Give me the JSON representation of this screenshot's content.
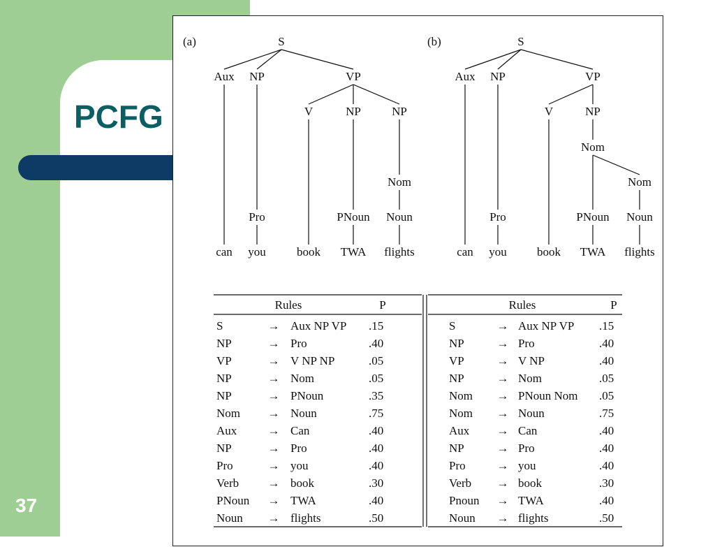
{
  "slide": {
    "title": "PCFG",
    "page_number": "37"
  },
  "trees": [
    {
      "label": "(a)",
      "nodes": [
        {
          "id": "S",
          "text": "S"
        },
        {
          "id": "Aux",
          "text": "Aux"
        },
        {
          "id": "NP1",
          "text": "NP"
        },
        {
          "id": "VP",
          "text": "VP"
        },
        {
          "id": "V",
          "text": "V"
        },
        {
          "id": "NP2",
          "text": "NP"
        },
        {
          "id": "NP3",
          "text": "NP"
        },
        {
          "id": "Nom",
          "text": "Nom"
        },
        {
          "id": "Pro",
          "text": "Pro"
        },
        {
          "id": "PNoun",
          "text": "PNoun"
        },
        {
          "id": "Noun",
          "text": "Noun"
        },
        {
          "id": "can",
          "text": "can"
        },
        {
          "id": "you",
          "text": "you"
        },
        {
          "id": "book",
          "text": "book"
        },
        {
          "id": "TWA",
          "text": "TWA"
        },
        {
          "id": "flights",
          "text": "flights"
        }
      ]
    },
    {
      "label": "(b)",
      "nodes": [
        {
          "id": "S",
          "text": "S"
        },
        {
          "id": "Aux",
          "text": "Aux"
        },
        {
          "id": "NP1",
          "text": "NP"
        },
        {
          "id": "VP",
          "text": "VP"
        },
        {
          "id": "V",
          "text": "V"
        },
        {
          "id": "NP2",
          "text": "NP"
        },
        {
          "id": "Nom1",
          "text": "Nom"
        },
        {
          "id": "Nom2",
          "text": "Nom"
        },
        {
          "id": "Pro",
          "text": "Pro"
        },
        {
          "id": "PNoun",
          "text": "PNoun"
        },
        {
          "id": "Noun",
          "text": "Noun"
        },
        {
          "id": "can",
          "text": "can"
        },
        {
          "id": "you",
          "text": "you"
        },
        {
          "id": "book",
          "text": "book"
        },
        {
          "id": "TWA",
          "text": "TWA"
        },
        {
          "id": "flights",
          "text": "flights"
        }
      ]
    }
  ],
  "tables": [
    {
      "header": {
        "rules": "Rules",
        "p": "P"
      },
      "arrow": "→",
      "rows": [
        {
          "lhs": "S",
          "rhs": "Aux NP VP",
          "p": ".15"
        },
        {
          "lhs": "NP",
          "rhs": "Pro",
          "p": ".40"
        },
        {
          "lhs": "VP",
          "rhs": "V NP NP",
          "p": ".05"
        },
        {
          "lhs": "NP",
          "rhs": "Nom",
          "p": ".05"
        },
        {
          "lhs": "NP",
          "rhs": "PNoun",
          "p": ".35"
        },
        {
          "lhs": "Nom",
          "rhs": "Noun",
          "p": ".75"
        },
        {
          "lhs": "Aux",
          "rhs": "Can",
          "p": ".40"
        },
        {
          "lhs": "NP",
          "rhs": "Pro",
          "p": ".40"
        },
        {
          "lhs": "Pro",
          "rhs": "you",
          "p": ".40"
        },
        {
          "lhs": "Verb",
          "rhs": "book",
          "p": ".30"
        },
        {
          "lhs": "PNoun",
          "rhs": "TWA",
          "p": ".40"
        },
        {
          "lhs": "Noun",
          "rhs": "flights",
          "p": ".50"
        }
      ]
    },
    {
      "header": {
        "rules": "Rules",
        "p": "P"
      },
      "arrow": "→",
      "rows": [
        {
          "lhs": "S",
          "rhs": "Aux NP VP",
          "p": ".15"
        },
        {
          "lhs": "NP",
          "rhs": "Pro",
          "p": ".40"
        },
        {
          "lhs": "VP",
          "rhs": "V NP",
          "p": ".40"
        },
        {
          "lhs": "NP",
          "rhs": "Nom",
          "p": ".05"
        },
        {
          "lhs": "Nom",
          "rhs": "PNoun Nom",
          "p": ".05"
        },
        {
          "lhs": "Nom",
          "rhs": "Noun",
          "p": ".75"
        },
        {
          "lhs": "Aux",
          "rhs": "Can",
          "p": ".40"
        },
        {
          "lhs": "NP",
          "rhs": "Pro",
          "p": ".40"
        },
        {
          "lhs": "Pro",
          "rhs": "you",
          "p": ".40"
        },
        {
          "lhs": "Verb",
          "rhs": "book",
          "p": ".30"
        },
        {
          "lhs": "Pnoun",
          "rhs": "TWA",
          "p": ".40"
        },
        {
          "lhs": "Noun",
          "rhs": "flights",
          "p": ".50"
        }
      ]
    }
  ]
}
